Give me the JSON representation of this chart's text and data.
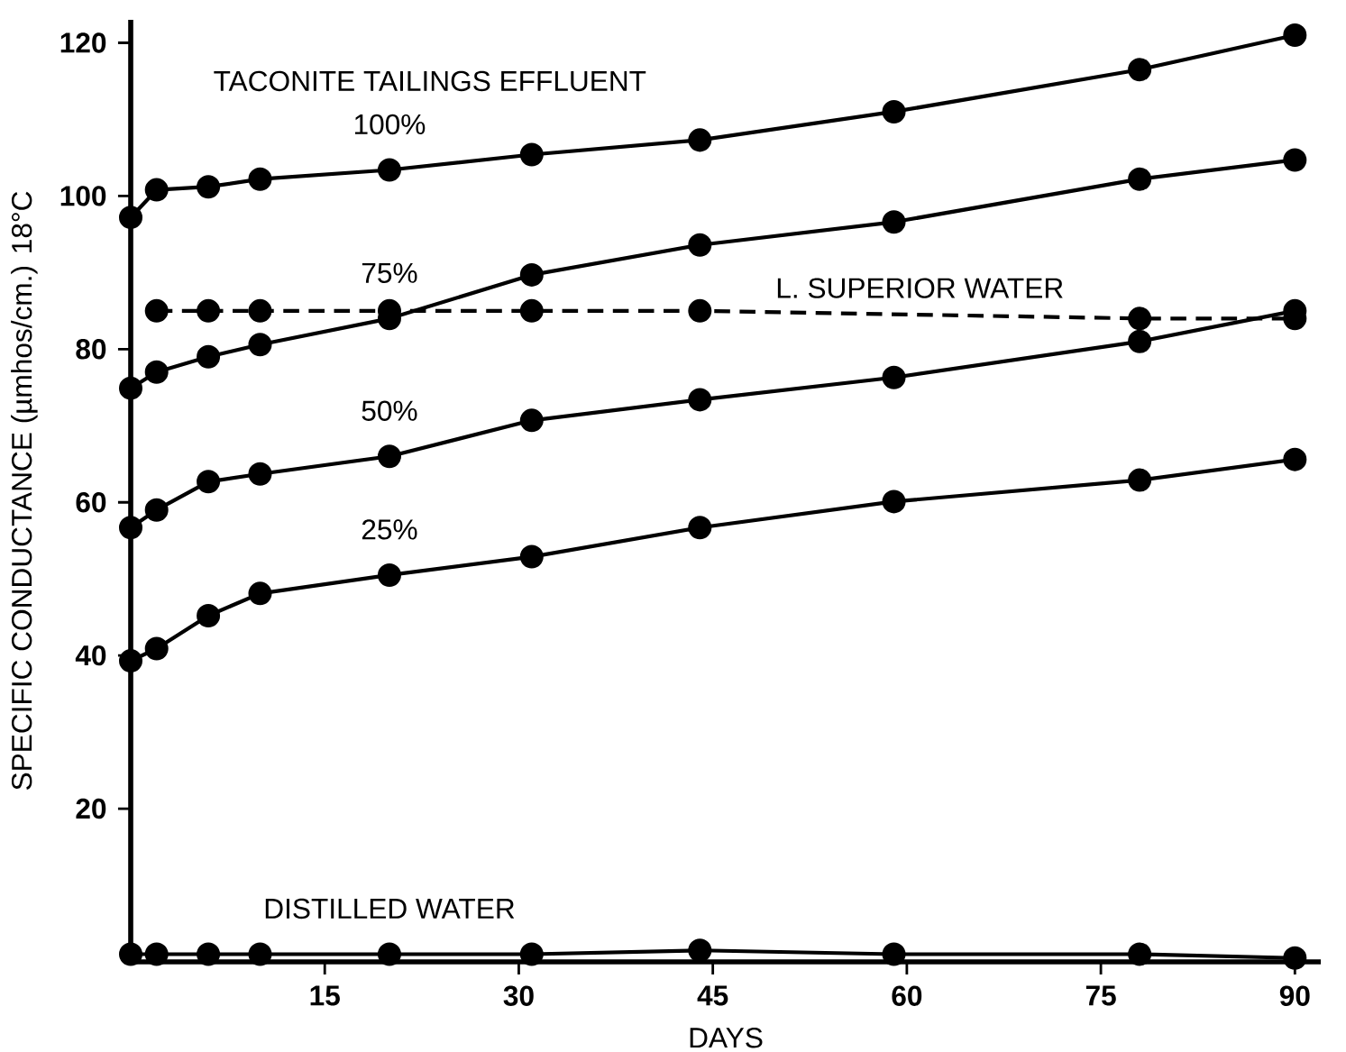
{
  "chart_data": {
    "type": "line",
    "xlabel": "DAYS",
    "ylabel": "SPECIFIC CONDUCTANCE (µmhos/cm.) 18°C",
    "annotations": [
      "TACONITE TAILINGS EFFLUENT"
    ],
    "xlim": [
      0,
      92
    ],
    "ylim": [
      0,
      123
    ],
    "xticks": [
      15,
      30,
      45,
      60,
      75,
      90
    ],
    "yticks": [
      20,
      40,
      60,
      80,
      100,
      120
    ],
    "grid": false,
    "marker": "circle",
    "series": [
      {
        "name": "100%",
        "color": "#000000",
        "x": [
          0,
          2,
          6,
          10,
          20,
          31,
          44,
          59,
          78,
          90
        ],
        "values": [
          97.2,
          100.8,
          101.2,
          102.2,
          103.4,
          105.4,
          107.3,
          111,
          116.5,
          121
        ]
      },
      {
        "name": "75%",
        "color": "#000000",
        "x": [
          0,
          2,
          6,
          10,
          20,
          31,
          44,
          59,
          78,
          90
        ],
        "values": [
          74.9,
          77,
          79,
          80.6,
          84,
          89.7,
          93.6,
          96.6,
          102.2,
          104.7
        ]
      },
      {
        "name": "50%",
        "color": "#000000",
        "x": [
          0,
          2,
          6,
          10,
          20,
          31,
          44,
          59,
          78,
          90
        ],
        "values": [
          56.7,
          59,
          62.7,
          63.7,
          66,
          70.7,
          73.4,
          76.3,
          81,
          85
        ]
      },
      {
        "name": "25%",
        "color": "#000000",
        "x": [
          0,
          2,
          6,
          10,
          20,
          31,
          44,
          59,
          78,
          90
        ],
        "values": [
          39.3,
          40.9,
          45.2,
          48.1,
          50.5,
          52.9,
          56.7,
          60.1,
          62.9,
          65.6
        ]
      },
      {
        "name": "L. SUPERIOR WATER",
        "color": "#000000",
        "line_style": "dashed",
        "x": [
          2,
          6,
          10,
          20,
          31,
          44,
          78,
          90
        ],
        "values": [
          85,
          85,
          85,
          85,
          85,
          85,
          84,
          84
        ]
      },
      {
        "name": "DISTILLED WATER",
        "color": "#000000",
        "x": [
          0,
          2,
          6,
          10,
          20,
          31,
          44,
          59,
          78,
          90
        ],
        "values": [
          1,
          1,
          1,
          1,
          1,
          1,
          1.5,
          1,
          1,
          0.5
        ]
      }
    ]
  }
}
